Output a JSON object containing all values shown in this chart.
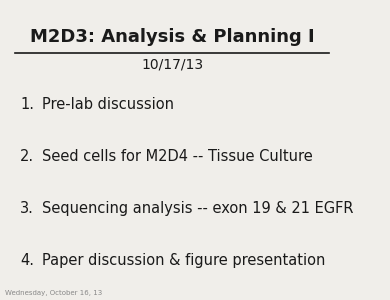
{
  "title": "M2D3: Analysis & Planning I",
  "subtitle": "10/17/13",
  "items": [
    "Pre-lab discussion",
    "Seed cells for M2D4 -- Tissue Culture",
    "Sequencing analysis -- exon 19 & 21 EGFR",
    "Paper discussion & figure presentation"
  ],
  "footer": "Wednesday, October 16, 13",
  "bg_color": "#f0eeea",
  "text_color": "#1a1a1a",
  "title_fontsize": 13,
  "subtitle_fontsize": 10,
  "item_fontsize": 10.5,
  "footer_fontsize": 5
}
